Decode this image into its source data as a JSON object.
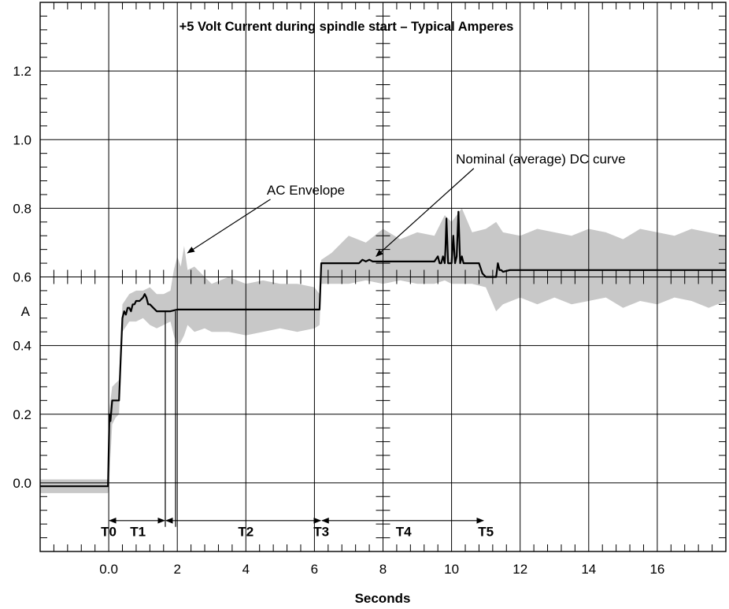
{
  "chart_data": {
    "type": "line",
    "title": "+5 Volt Current during spindle start – Typical Amperes",
    "xlabel": "Seconds",
    "ylabel": "A",
    "xlim": [
      -2,
      18
    ],
    "ylim": [
      -0.2,
      1.4
    ],
    "x_major_ticks": [
      -2,
      0,
      2,
      4,
      6,
      8,
      10,
      12,
      14,
      16,
      18
    ],
    "x_tick_labels": [
      {
        "x": 0,
        "text": "0.0"
      },
      {
        "x": 2,
        "text": "2"
      },
      {
        "x": 4,
        "text": "4"
      },
      {
        "x": 6,
        "text": "6"
      },
      {
        "x": 8,
        "text": "8"
      },
      {
        "x": 10,
        "text": "10"
      },
      {
        "x": 12,
        "text": "12"
      },
      {
        "x": 14,
        "text": "14"
      },
      {
        "x": 16,
        "text": "16"
      }
    ],
    "y_major_ticks": [
      -0.2,
      0.0,
      0.2,
      0.4,
      0.6,
      0.8,
      1.0,
      1.2,
      1.4
    ],
    "y_tick_labels": [
      {
        "y": 0.0,
        "text": "0.0"
      },
      {
        "y": 0.2,
        "text": "0.2"
      },
      {
        "y": 0.4,
        "text": "0.4"
      },
      {
        "y": 0.6,
        "text": "0.6"
      },
      {
        "y": 0.8,
        "text": "0.8"
      },
      {
        "y": 1.0,
        "text": "1.0"
      },
      {
        "y": 1.2,
        "text": "1.2"
      }
    ],
    "grid": true,
    "series": [
      {
        "name": "Nominal (average) DC curve",
        "color": "#000000",
        "x": [
          -2,
          -0.02,
          0.02,
          0.05,
          0.1,
          0.2,
          0.3,
          0.35,
          0.4,
          0.45,
          0.5,
          0.55,
          0.6,
          0.65,
          0.7,
          0.75,
          0.8,
          0.9,
          1.0,
          1.05,
          1.1,
          1.15,
          1.2,
          1.3,
          1.4,
          1.6,
          1.8,
          2.0,
          3.0,
          4.0,
          5.0,
          6.0,
          6.15,
          6.2,
          6.3,
          7.0,
          7.3,
          7.4,
          7.5,
          7.6,
          7.7,
          8.0,
          9.0,
          9.5,
          9.6,
          9.65,
          9.7,
          9.75,
          9.8,
          9.82,
          9.85,
          9.9,
          10.0,
          10.05,
          10.1,
          10.15,
          10.2,
          10.25,
          10.3,
          10.35,
          10.4,
          10.6,
          10.8,
          10.9,
          11.0,
          11.2,
          11.3,
          11.35,
          11.4,
          11.45,
          11.5,
          11.7,
          12.0,
          13.0,
          14.0,
          15.0,
          16.0,
          17.0,
          18.0
        ],
        "values": [
          -0.01,
          -0.01,
          0.2,
          0.18,
          0.24,
          0.24,
          0.24,
          0.36,
          0.48,
          0.5,
          0.49,
          0.51,
          0.51,
          0.5,
          0.52,
          0.52,
          0.53,
          0.53,
          0.54,
          0.55,
          0.54,
          0.52,
          0.52,
          0.51,
          0.5,
          0.5,
          0.5,
          0.505,
          0.505,
          0.505,
          0.505,
          0.505,
          0.505,
          0.64,
          0.64,
          0.64,
          0.64,
          0.65,
          0.645,
          0.65,
          0.645,
          0.645,
          0.645,
          0.645,
          0.66,
          0.64,
          0.64,
          0.66,
          0.64,
          0.68,
          0.77,
          0.64,
          0.64,
          0.72,
          0.64,
          0.66,
          0.79,
          0.64,
          0.66,
          0.64,
          0.64,
          0.64,
          0.64,
          0.61,
          0.6,
          0.6,
          0.6,
          0.64,
          0.62,
          0.62,
          0.615,
          0.62,
          0.62,
          0.62,
          0.62,
          0.62,
          0.62,
          0.62,
          0.62
        ]
      },
      {
        "name": "AC Envelope",
        "color": "#c8c8c8",
        "x": [
          -2,
          -0.02,
          0.0,
          0.1,
          0.2,
          0.3,
          0.4,
          0.6,
          0.8,
          1.0,
          1.2,
          1.4,
          1.6,
          1.8,
          1.9,
          2.0,
          2.1,
          2.2,
          2.3,
          2.5,
          2.8,
          3.0,
          3.5,
          4.0,
          4.5,
          5.0,
          5.5,
          6.0,
          6.15,
          6.2,
          6.5,
          7.0,
          7.5,
          8.0,
          8.5,
          9.0,
          9.5,
          9.8,
          10.0,
          10.3,
          10.6,
          11.0,
          11.3,
          11.5,
          12.0,
          12.5,
          13.0,
          13.5,
          14.0,
          14.5,
          15.0,
          15.5,
          16.0,
          16.5,
          17.0,
          17.5,
          18.0
        ],
        "upper": [
          0.01,
          0.01,
          0.2,
          0.28,
          0.29,
          0.3,
          0.52,
          0.55,
          0.56,
          0.56,
          0.57,
          0.55,
          0.55,
          0.56,
          0.62,
          0.66,
          0.63,
          0.69,
          0.62,
          0.63,
          0.6,
          0.58,
          0.6,
          0.58,
          0.59,
          0.58,
          0.58,
          0.57,
          0.55,
          0.65,
          0.67,
          0.72,
          0.7,
          0.74,
          0.71,
          0.73,
          0.72,
          0.78,
          0.76,
          0.8,
          0.73,
          0.74,
          0.76,
          0.73,
          0.72,
          0.74,
          0.73,
          0.72,
          0.74,
          0.73,
          0.71,
          0.74,
          0.73,
          0.72,
          0.74,
          0.73,
          0.72
        ],
        "lower": [
          -0.03,
          -0.03,
          -0.02,
          0.17,
          0.19,
          0.2,
          0.44,
          0.47,
          0.47,
          0.48,
          0.46,
          0.45,
          0.46,
          0.47,
          0.43,
          0.4,
          0.41,
          0.43,
          0.46,
          0.44,
          0.45,
          0.44,
          0.44,
          0.43,
          0.44,
          0.45,
          0.44,
          0.45,
          0.46,
          0.58,
          0.58,
          0.58,
          0.59,
          0.58,
          0.59,
          0.58,
          0.58,
          0.59,
          0.58,
          0.58,
          0.58,
          0.57,
          0.5,
          0.52,
          0.54,
          0.52,
          0.54,
          0.52,
          0.53,
          0.54,
          0.51,
          0.53,
          0.52,
          0.54,
          0.53,
          0.51,
          0.53
        ]
      }
    ],
    "annotations": [
      {
        "text": "AC Envelope",
        "text_x": 5.75,
        "text_y": 0.84,
        "arrow_to_x": 2.3,
        "arrow_to_y": 0.67
      },
      {
        "text": "Nominal (average) DC curve",
        "text_x": 12.6,
        "text_y": 0.93,
        "arrow_to_x": 7.8,
        "arrow_to_y": 0.66
      }
    ],
    "phase_markers": [
      {
        "label": "T0",
        "x": 0.0
      },
      {
        "label": "T1",
        "x": 1.65
      },
      {
        "label": "T2",
        "x": 1.95
      },
      {
        "label": "T3",
        "x": 6.2
      },
      {
        "label": "T4",
        "x": 6.35
      },
      {
        "label": "T5",
        "x": 10.95
      }
    ],
    "phase_labels": [
      {
        "label": "T0",
        "x": 0.0
      },
      {
        "label": "T1",
        "x": 0.85
      },
      {
        "label": "T2",
        "x": 4.0
      },
      {
        "label": "T3",
        "x": 6.2
      },
      {
        "label": "T4",
        "x": 8.6
      },
      {
        "label": "T5",
        "x": 11.0
      }
    ],
    "phase_spans": [
      {
        "from": 0.0,
        "to": 1.65
      },
      {
        "from": 1.65,
        "to": 6.2
      },
      {
        "from": 6.2,
        "to": 10.95
      }
    ],
    "phase_lines": [
      1.65,
      1.95
    ]
  }
}
